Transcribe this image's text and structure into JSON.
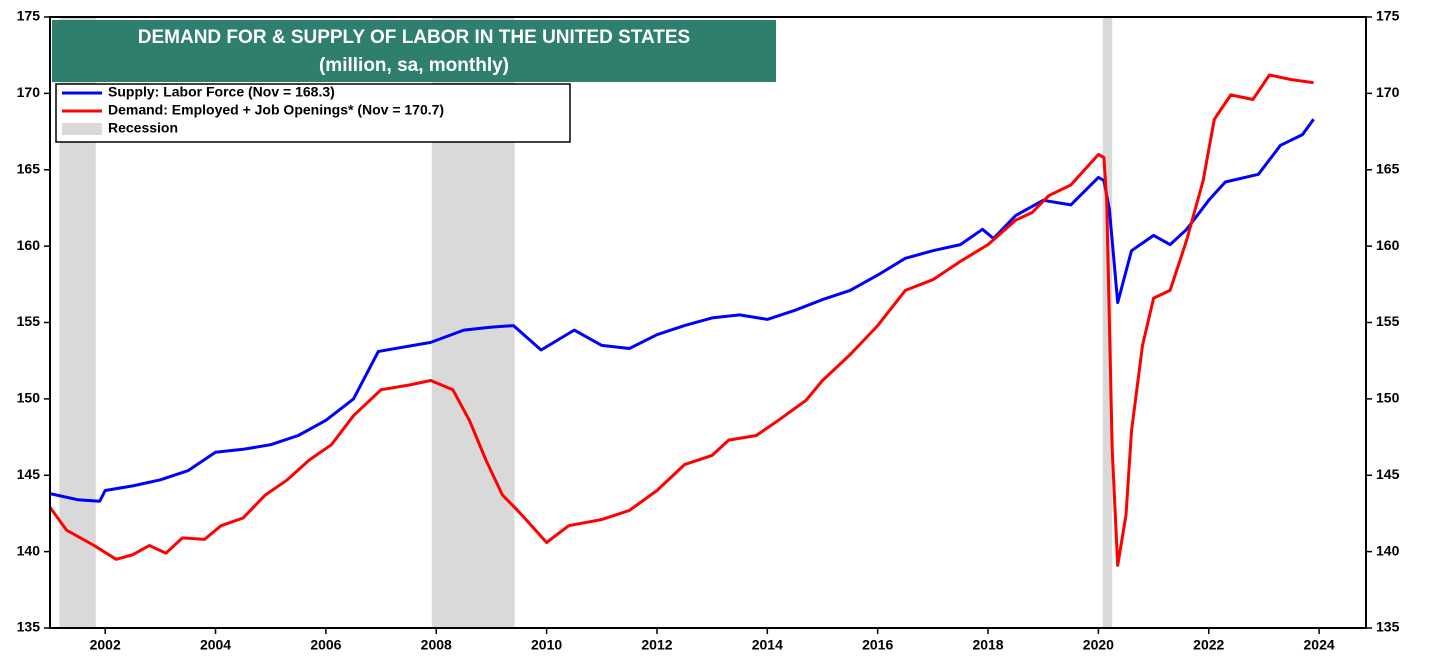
{
  "chart_data": {
    "type": "line",
    "title": "DEMAND FOR & SUPPLY OF LABOR IN THE UNITED STATES",
    "subtitle": "(million, sa, monthly)",
    "recession_label": "Recession",
    "recessions": [
      [
        2001.17,
        2001.83
      ],
      [
        2007.92,
        2009.42
      ],
      [
        2020.08,
        2020.25
      ]
    ],
    "recession_color": "#d9d9d9",
    "series": [
      {
        "name": "Supply: Labor Force (Nov = 168.3)",
        "color": "#0000ff",
        "x": [
          2001.0,
          2001.5,
          2001.9,
          2002.0,
          2002.5,
          2003.0,
          2003.5,
          2004.0,
          2004.5,
          2005.0,
          2005.5,
          2006.0,
          2006.5,
          2006.95,
          2007.9,
          2008.5,
          2009.0,
          2009.4,
          2009.9,
          2010.5,
          2011.0,
          2011.5,
          2012.0,
          2012.5,
          2013.0,
          2013.5,
          2014.0,
          2014.5,
          2015.0,
          2015.5,
          2016.0,
          2016.5,
          2017.0,
          2017.5,
          2017.9,
          2018.1,
          2018.5,
          2019.0,
          2019.5,
          2020.0,
          2020.1,
          2020.2,
          2020.35,
          2020.6,
          2021.0,
          2021.3,
          2021.6,
          2022.0,
          2022.3,
          2022.9,
          2023.3,
          2023.7,
          2023.9
        ],
        "values": [
          143.8,
          143.4,
          143.3,
          144.0,
          144.3,
          144.7,
          145.3,
          146.5,
          146.7,
          147.0,
          147.6,
          148.6,
          150.0,
          153.1,
          153.7,
          154.5,
          154.7,
          154.8,
          153.2,
          154.5,
          153.5,
          153.3,
          154.2,
          154.8,
          155.3,
          155.5,
          155.2,
          155.8,
          156.5,
          157.1,
          158.1,
          159.2,
          159.7,
          160.1,
          161.1,
          160.5,
          162.0,
          163.0,
          162.7,
          164.5,
          164.3,
          162.4,
          156.3,
          159.7,
          160.7,
          160.1,
          161.1,
          163.0,
          164.2,
          164.7,
          166.6,
          167.3,
          168.3
        ]
      },
      {
        "name": "Demand: Employed + Job Openings* (Nov = 170.7)",
        "color": "#ff0000",
        "x": [
          2001.0,
          2001.3,
          2001.8,
          2002.2,
          2002.5,
          2002.8,
          2003.1,
          2003.4,
          2003.8,
          2004.1,
          2004.5,
          2004.9,
          2005.3,
          2005.7,
          2006.1,
          2006.5,
          2007.0,
          2007.5,
          2007.9,
          2008.3,
          2008.6,
          2008.9,
          2009.2,
          2009.5,
          2009.8,
          2010.0,
          2010.4,
          2011.0,
          2011.5,
          2012.0,
          2012.5,
          2013.0,
          2013.3,
          2013.8,
          2014.2,
          2014.7,
          2015.0,
          2015.5,
          2016.0,
          2016.5,
          2017.0,
          2017.5,
          2018.0,
          2018.5,
          2018.8,
          2019.1,
          2019.5,
          2020.0,
          2020.1,
          2020.15,
          2020.25,
          2020.35,
          2020.5,
          2020.6,
          2020.8,
          2021.0,
          2021.3,
          2021.6,
          2021.9,
          2022.1,
          2022.4,
          2022.8,
          2023.1,
          2023.5,
          2023.9
        ],
        "values": [
          142.9,
          141.4,
          140.4,
          139.5,
          139.8,
          140.4,
          139.9,
          140.9,
          140.8,
          141.7,
          142.2,
          143.7,
          144.7,
          146.0,
          147.0,
          148.9,
          150.6,
          150.9,
          151.2,
          150.6,
          148.6,
          146.0,
          143.7,
          142.6,
          141.4,
          140.6,
          141.7,
          142.1,
          142.7,
          144.0,
          145.7,
          146.3,
          147.3,
          147.6,
          148.6,
          149.9,
          151.2,
          152.9,
          154.8,
          157.1,
          157.8,
          159.0,
          160.1,
          161.7,
          162.2,
          163.3,
          164.0,
          166.0,
          165.8,
          163.0,
          146.7,
          139.1,
          142.4,
          147.9,
          153.5,
          156.6,
          157.1,
          160.4,
          164.3,
          168.3,
          169.9,
          169.6,
          171.2,
          170.9,
          170.7
        ]
      }
    ],
    "xlim": [
      2001.0,
      2024.85
    ],
    "xticks": [
      2002,
      2004,
      2006,
      2008,
      2010,
      2012,
      2014,
      2016,
      2018,
      2020,
      2022,
      2024
    ],
    "ylim": [
      135,
      175
    ],
    "yticks": [
      135,
      140,
      145,
      150,
      155,
      160,
      165,
      170,
      175
    ],
    "y2lim": [
      135,
      175
    ],
    "y2ticks": [
      135,
      140,
      145,
      150,
      155,
      160,
      165,
      170,
      175
    ],
    "legend": "upper left"
  }
}
